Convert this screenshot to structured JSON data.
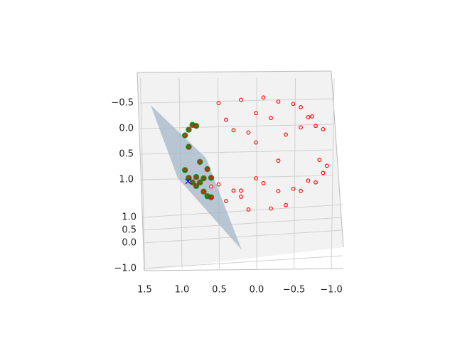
{
  "chart_data": {
    "type": "scatter3d",
    "xlim": [
      -1,
      1.5
    ],
    "ylim": [
      -1,
      1
    ],
    "zlim": [
      -1,
      1
    ],
    "xticks": [
      {
        "value": 1.5,
        "label": "1.5"
      },
      {
        "value": 1,
        "label": "1.0"
      },
      0.5,
      {
        "value": 0,
        "label": "0.0"
      },
      {
        "value": -0.5,
        "label": "−0.5"
      },
      {
        "value": -1,
        "label": "−1.0"
      }
    ],
    "yticks": [
      {
        "value": 1,
        "label": "1.0"
      },
      0.5,
      {
        "value": 0,
        "label": "0.0"
      },
      {
        "value": -1,
        "label": "−1.0"
      }
    ],
    "zticks": [
      {
        "value": -0.5,
        "label": "−0.5"
      },
      {
        "value": 0,
        "label": "0.0"
      },
      0.5,
      {
        "value": 1,
        "label": "1.0"
      }
    ],
    "grid": true,
    "surface": {
      "color": "#9fb4c8",
      "x": [
        1.41,
        0.67,
        0.19,
        1.05
      ],
      "y": [
        0,
        0,
        0,
        0
      ],
      "z": [
        -0.93,
        0.1,
        1.9,
        0.49
      ]
    },
    "series": [
      {
        "color": "red",
        "marker": "ring",
        "x": [
          -0.9,
          -0.9,
          -0.8,
          -0.8,
          -0.7,
          -0.7,
          -0.6,
          -0.6,
          -0.5,
          -0.5,
          -0.4,
          -0.4,
          -0.3,
          -0.3,
          -0.2,
          -0.2,
          -0.1,
          -0.1,
          0,
          0,
          0.1,
          0.1,
          0.2,
          0.2,
          0.3,
          0.3,
          0.4,
          0.4,
          0.5,
          0.5,
          -0.95,
          -0.85,
          0.6,
          -0.6,
          -0.3,
          0,
          0.2,
          -0.75
        ],
        "y": [
          0.32,
          -0.39,
          0.55,
          -0.5,
          0.59,
          -0.69,
          0.3,
          -0.69,
          0.51,
          -0.81,
          0.91,
          -0.41,
          0.7,
          -0.91,
          0.96,
          -0.5,
          0.22,
          -0.99,
          0.6,
          -0.8,
          0.99,
          -0.5,
          0.71,
          -0.94,
          0.32,
          -0.6,
          0.89,
          -0.69,
          0.4,
          -0.84,
          0.09,
          0.4,
          0.22,
          0.79,
          0.3,
          0.95,
          0.2,
          0.12
        ],
        "z": [
          -0.3,
          0.2,
          -0.25,
          0.33,
          -0.4,
          0.2,
          -0.74,
          0.4,
          -0.7,
          0.3,
          0.1,
          0.82,
          -0.65,
          -0.3,
          -0.2,
          0.84,
          -0.97,
          0.1,
          0.8,
          -0.6,
          0.1,
          0.86,
          -0.68,
          0.27,
          0.9,
          -0.74,
          -0.2,
          0.6,
          -0.77,
          0.2,
          0.3,
          0.34,
          0.77,
          -0.1,
          0.9,
          -0.3,
          0.96,
          -0.65
        ]
      },
      {
        "color": "green",
        "marker": "dot",
        "x": [
          0.95,
          0.9,
          0.9,
          0.85,
          0.85,
          0.8,
          0.8,
          0.75,
          0.75,
          0.7,
          0.7,
          0.65,
          0.65,
          0.6,
          0.6,
          0.9,
          0.95,
          0.8
        ],
        "y": [
          0.2,
          0.3,
          -0.2,
          0.39,
          -0.3,
          0.55,
          -0.4,
          0.5,
          -0.6,
          0.3,
          -0.5,
          0.5,
          -0.3,
          0.4,
          -0.5,
          0.43,
          -0.2,
          0.19
        ],
        "z": [
          -0.24,
          -0.3,
          0.39,
          -0.35,
          0.43,
          -0.25,
          0.45,
          0.43,
          0.28,
          0.65,
          0.51,
          0.57,
          0.7,
          0.69,
          0.62,
          0.1,
          0.24,
          0.57
        ]
      },
      {
        "color": "blue",
        "marker": "x",
        "x": [
          0.91
        ],
        "y": [
          0
        ],
        "z": [
          0.56
        ]
      }
    ]
  }
}
